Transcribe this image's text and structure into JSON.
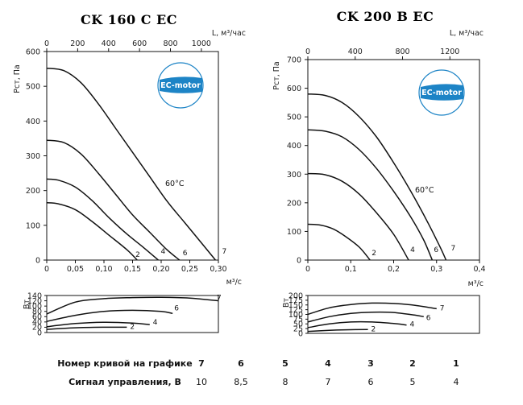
{
  "chart_data": [
    {
      "type": "line",
      "title": "CK 160 C EC",
      "top_axis_label": "L, м³/час",
      "top_ticks": [
        "0",
        "200",
        "400",
        "600",
        "800",
        "1000"
      ],
      "xlabel": "м³/с",
      "x_ticks": [
        "0",
        "0,05",
        "0,10",
        "0,15",
        "0,20",
        "0,25",
        "0,30"
      ],
      "xlim": [
        0,
        0.3
      ],
      "ylabel": "Рст, Па",
      "y_ticks": [
        "0",
        "100",
        "200",
        "300",
        "400",
        "500",
        "600"
      ],
      "ylim": [
        0,
        600
      ],
      "annotation": "60°C",
      "logo_text": "EC-motor",
      "series": [
        {
          "name": "7",
          "points": [
            [
              0,
              552
            ],
            [
              0.03,
              545
            ],
            [
              0.06,
              510
            ],
            [
              0.09,
              450
            ],
            [
              0.12,
              380
            ],
            [
              0.15,
              310
            ],
            [
              0.18,
              240
            ],
            [
              0.21,
              170
            ],
            [
              0.24,
              110
            ],
            [
              0.27,
              50
            ],
            [
              0.295,
              0
            ]
          ]
        },
        {
          "name": "6",
          "points": [
            [
              0,
              345
            ],
            [
              0.03,
              338
            ],
            [
              0.06,
              305
            ],
            [
              0.09,
              250
            ],
            [
              0.12,
              190
            ],
            [
              0.15,
              130
            ],
            [
              0.18,
              80
            ],
            [
              0.21,
              30
            ],
            [
              0.232,
              0
            ]
          ]
        },
        {
          "name": "4",
          "points": [
            [
              0,
              233
            ],
            [
              0.02,
              230
            ],
            [
              0.05,
              210
            ],
            [
              0.08,
              170
            ],
            [
              0.11,
              120
            ],
            [
              0.14,
              75
            ],
            [
              0.17,
              35
            ],
            [
              0.195,
              0
            ]
          ]
        },
        {
          "name": "2",
          "points": [
            [
              0,
              165
            ],
            [
              0.02,
              162
            ],
            [
              0.05,
              145
            ],
            [
              0.08,
              110
            ],
            [
              0.11,
              70
            ],
            [
              0.14,
              30
            ],
            [
              0.158,
              0
            ]
          ]
        }
      ],
      "power": {
        "ylabel": "Вт",
        "y_ticks": [
          "0",
          "20",
          "40",
          "60",
          "80",
          "100",
          "120",
          "140"
        ],
        "ylim": [
          0,
          140
        ],
        "series": [
          {
            "name": "7",
            "points": [
              [
                0,
                70
              ],
              [
                0.05,
                115
              ],
              [
                0.1,
                128
              ],
              [
                0.15,
                132
              ],
              [
                0.2,
                133
              ],
              [
                0.25,
                130
              ],
              [
                0.3,
                120
              ]
            ]
          },
          {
            "name": "6",
            "points": [
              [
                0,
                42
              ],
              [
                0.05,
                65
              ],
              [
                0.1,
                80
              ],
              [
                0.15,
                84
              ],
              [
                0.2,
                80
              ],
              [
                0.22,
                72
              ]
            ]
          },
          {
            "name": "4",
            "points": [
              [
                0,
                22
              ],
              [
                0.05,
                34
              ],
              [
                0.1,
                39
              ],
              [
                0.15,
                36
              ],
              [
                0.18,
                30
              ]
            ]
          },
          {
            "name": "2",
            "points": [
              [
                0,
                12
              ],
              [
                0.05,
                18
              ],
              [
                0.1,
                20
              ],
              [
                0.14,
                20
              ]
            ]
          }
        ]
      }
    },
    {
      "type": "line",
      "title": "CK 200 B EC",
      "top_axis_label": "L, м³/час",
      "top_ticks": [
        "0",
        "400",
        "800",
        "1200"
      ],
      "xlabel": "м³/с",
      "x_ticks": [
        "0",
        "0,1",
        "0,2",
        "0,3",
        "0,4"
      ],
      "xlim": [
        0,
        0.4
      ],
      "ylabel": "Рст, Па",
      "y_ticks": [
        "0",
        "100",
        "200",
        "300",
        "400",
        "500",
        "600",
        "700"
      ],
      "ylim": [
        0,
        700
      ],
      "annotation": "60°C",
      "logo_text": "EC-motor",
      "series": [
        {
          "name": "7",
          "points": [
            [
              0,
              580
            ],
            [
              0.04,
              575
            ],
            [
              0.08,
              550
            ],
            [
              0.12,
              500
            ],
            [
              0.16,
              430
            ],
            [
              0.2,
              340
            ],
            [
              0.24,
              240
            ],
            [
              0.28,
              130
            ],
            [
              0.31,
              40
            ],
            [
              0.322,
              0
            ]
          ]
        },
        {
          "name": "6",
          "points": [
            [
              0,
              455
            ],
            [
              0.04,
              450
            ],
            [
              0.08,
              430
            ],
            [
              0.12,
              385
            ],
            [
              0.16,
              320
            ],
            [
              0.2,
              240
            ],
            [
              0.24,
              150
            ],
            [
              0.27,
              70
            ],
            [
              0.29,
              0
            ]
          ]
        },
        {
          "name": "4",
          "points": [
            [
              0,
              302
            ],
            [
              0.04,
              298
            ],
            [
              0.08,
              275
            ],
            [
              0.12,
              230
            ],
            [
              0.16,
              165
            ],
            [
              0.2,
              90
            ],
            [
              0.235,
              0
            ]
          ]
        },
        {
          "name": "2",
          "points": [
            [
              0,
              125
            ],
            [
              0.03,
              122
            ],
            [
              0.06,
              108
            ],
            [
              0.09,
              80
            ],
            [
              0.12,
              45
            ],
            [
              0.145,
              0
            ]
          ]
        }
      ],
      "power": {
        "ylabel": "Вт",
        "y_ticks": [
          "0",
          "25",
          "50",
          "75",
          "100",
          "125",
          "150",
          "175",
          "200"
        ],
        "ylim": [
          0,
          200
        ],
        "series": [
          {
            "name": "7",
            "points": [
              [
                0,
                100
              ],
              [
                0.05,
                135
              ],
              [
                0.1,
                152
              ],
              [
                0.15,
                160
              ],
              [
                0.2,
                158
              ],
              [
                0.25,
                148
              ],
              [
                0.3,
                130
              ]
            ]
          },
          {
            "name": "6",
            "points": [
              [
                0,
                60
              ],
              [
                0.05,
                88
              ],
              [
                0.1,
                105
              ],
              [
                0.15,
                112
              ],
              [
                0.2,
                110
              ],
              [
                0.25,
                96
              ],
              [
                0.27,
                88
              ]
            ]
          },
          {
            "name": "4",
            "points": [
              [
                0,
                30
              ],
              [
                0.05,
                50
              ],
              [
                0.1,
                60
              ],
              [
                0.15,
                60
              ],
              [
                0.2,
                52
              ],
              [
                0.23,
                44
              ]
            ]
          },
          {
            "name": "2",
            "points": [
              [
                0,
                10
              ],
              [
                0.05,
                16
              ],
              [
                0.1,
                19
              ],
              [
                0.14,
                20
              ]
            ]
          }
        ]
      }
    }
  ],
  "table": {
    "row1_label": "Номер кривой на графике",
    "row1_values": [
      "7",
      "6",
      "5",
      "4",
      "3",
      "2",
      "1"
    ],
    "row2_label": "Сигнал управления, В",
    "row2_values": [
      "10",
      "8,5",
      "8",
      "7",
      "6",
      "5",
      "4"
    ]
  }
}
